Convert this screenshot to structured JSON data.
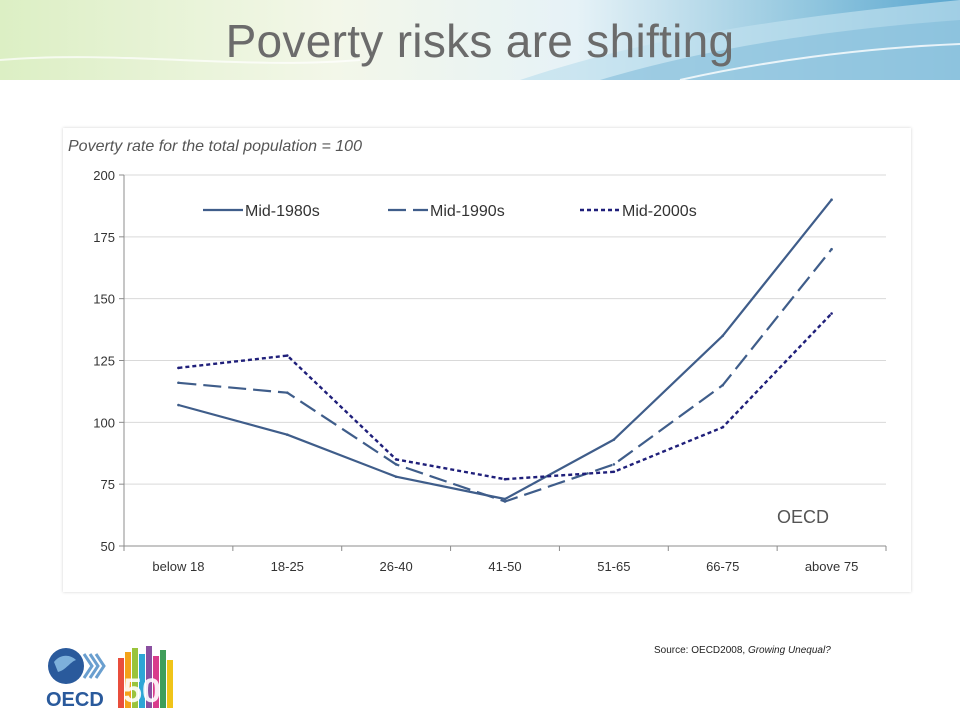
{
  "slide": {
    "title": "Poverty risks are shifting",
    "source_prefix": "Source: OECD2008, ",
    "source_title": "Growing Unequal?",
    "logo_text": "OECD",
    "logo_number": "50"
  },
  "colors": {
    "title": "#6b6b6b",
    "series_main": "#3f5d8a",
    "series_dotted": "#1f1f7a",
    "grid": "#d9d9d9"
  },
  "chart_data": {
    "type": "line",
    "title": "Poverty rate for the total population = 100",
    "watermark": "OECD",
    "categories": [
      "below 18",
      "18-25",
      "26-40",
      "41-50",
      "51-65",
      "66-75",
      "above 75"
    ],
    "ylim": [
      50,
      200
    ],
    "yticks": [
      50,
      75,
      100,
      125,
      150,
      175,
      200
    ],
    "grid": true,
    "legend_position": "top",
    "series": [
      {
        "name": "Mid-1980s",
        "style": "solid",
        "values": [
          107,
          95,
          78,
          69,
          93,
          135,
          190
        ]
      },
      {
        "name": "Mid-1990s",
        "style": "dashed",
        "values": [
          116,
          112,
          83,
          68,
          83,
          115,
          170
        ]
      },
      {
        "name": "Mid-2000s",
        "style": "dotted",
        "values": [
          122,
          127,
          85,
          77,
          80,
          98,
          144
        ]
      }
    ]
  }
}
